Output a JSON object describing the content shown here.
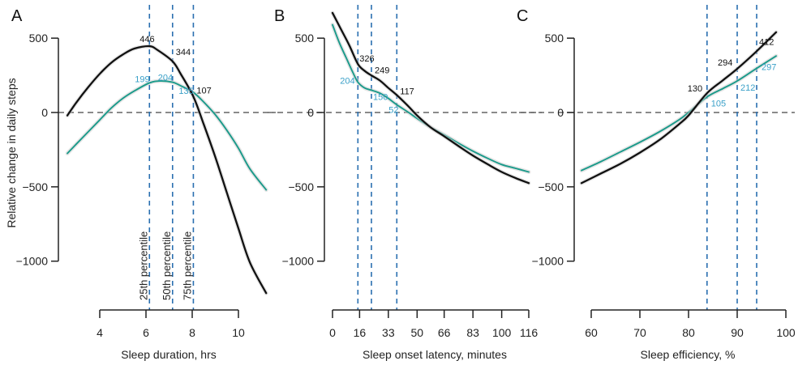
{
  "chart_data": [
    {
      "type": "line",
      "panel": "A",
      "title": "",
      "xlabel": "Sleep duration, hrs",
      "ylabel": "Relative change in daily steps",
      "xlim": [
        3.5,
        10.5
      ],
      "ylim": [
        -1000,
        500
      ],
      "x_ticks": [
        4,
        6,
        8,
        10
      ],
      "y_ticks": [
        500,
        0,
        -500,
        -1000
      ],
      "reference_line_y": 0,
      "percentile_lines": [
        {
          "x": 6.15,
          "label": "25th percentile"
        },
        {
          "x": 7.15,
          "label": "50th percentile"
        },
        {
          "x": 8.05,
          "label": "75th percentile"
        }
      ],
      "series": [
        {
          "name": "black",
          "color": "#111111",
          "x": [
            2.6,
            3.0,
            3.5,
            4.0,
            4.5,
            5.0,
            5.5,
            6.15,
            6.5,
            7.15,
            7.5,
            8.05,
            8.5,
            9.0,
            9.5,
            10.0,
            10.5,
            11.2
          ],
          "y": [
            -20,
            70,
            170,
            260,
            335,
            390,
            430,
            446,
            420,
            344,
            260,
            107,
            -80,
            -300,
            -540,
            -780,
            -1010,
            -1215
          ]
        },
        {
          "name": "teal",
          "color": "#1a9a8a",
          "x": [
            2.6,
            3.0,
            3.5,
            4.0,
            4.5,
            5.0,
            5.5,
            6.15,
            6.6,
            7.15,
            7.5,
            8.05,
            8.5,
            9.0,
            9.5,
            10.0,
            10.5,
            11.2
          ],
          "y": [
            -275,
            -210,
            -130,
            -50,
            30,
            95,
            145,
            199,
            212,
            204,
            180,
            135,
            70,
            -15,
            -120,
            -240,
            -380,
            -520
          ]
        }
      ],
      "annotations": [
        {
          "series": "black",
          "text": "446",
          "x": 6.15,
          "y": 446
        },
        {
          "series": "black",
          "text": "344",
          "x": 7.15,
          "y": 344
        },
        {
          "series": "black",
          "text": "107",
          "x": 8.05,
          "y": 107
        },
        {
          "series": "teal",
          "text": "199",
          "x": 6.15,
          "y": 199
        },
        {
          "series": "teal",
          "text": "204",
          "x": 7.15,
          "y": 204
        },
        {
          "series": "teal",
          "text": "135",
          "x": 8.05,
          "y": 135
        }
      ]
    },
    {
      "type": "line",
      "panel": "B",
      "title": "",
      "xlabel": "Sleep onset latency, minutes",
      "ylabel": "",
      "xlim": [
        0,
        116
      ],
      "ylim": [
        -1000,
        500
      ],
      "x_ticks": [
        0,
        16,
        33,
        50,
        66,
        83,
        100,
        116
      ],
      "y_ticks": [
        500,
        0,
        -500,
        -1000
      ],
      "reference_line_y": 0,
      "percentile_lines": [
        {
          "x": 15,
          "label": ""
        },
        {
          "x": 23,
          "label": ""
        },
        {
          "x": 38,
          "label": ""
        }
      ],
      "series": [
        {
          "name": "black",
          "color": "#111111",
          "x": [
            0,
            5,
            10,
            15,
            19,
            23,
            28,
            33,
            38,
            45,
            50,
            58,
            66,
            75,
            83,
            92,
            100,
            108,
            116
          ],
          "y": [
            670,
            560,
            450,
            326,
            280,
            249,
            215,
            165,
            117,
            40,
            -20,
            -100,
            -160,
            -230,
            -290,
            -350,
            -400,
            -440,
            -475
          ]
        },
        {
          "name": "teal",
          "color": "#1a9a8a",
          "x": [
            0,
            4,
            8,
            12,
            15,
            19,
            23,
            28,
            33,
            38,
            45,
            50,
            58,
            66,
            75,
            83,
            92,
            100,
            108,
            116
          ],
          "y": [
            590,
            470,
            370,
            270,
            204,
            165,
            150,
            130,
            95,
            52,
            0,
            -40,
            -100,
            -150,
            -210,
            -260,
            -310,
            -350,
            -375,
            -400
          ]
        }
      ],
      "annotations": [
        {
          "series": "black",
          "text": "326",
          "x": 15,
          "y": 326
        },
        {
          "series": "black",
          "text": "249",
          "x": 23,
          "y": 249
        },
        {
          "series": "black",
          "text": "117",
          "x": 38,
          "y": 117
        },
        {
          "series": "teal",
          "text": "204",
          "x": 15,
          "y": 204
        },
        {
          "series": "teal",
          "text": "150",
          "x": 23,
          "y": 150
        },
        {
          "series": "teal",
          "text": "52",
          "x": 38,
          "y": 52
        }
      ]
    },
    {
      "type": "line",
      "panel": "C",
      "title": "",
      "xlabel": "Sleep efficiency, %",
      "ylabel": "",
      "xlim": [
        60,
        100
      ],
      "ylim": [
        -1000,
        500
      ],
      "x_ticks": [
        60,
        70,
        80,
        90,
        100
      ],
      "y_ticks": [
        500,
        0,
        -500,
        -1000
      ],
      "reference_line_y": 0,
      "percentile_lines": [
        {
          "x": 83.8,
          "label": ""
        },
        {
          "x": 90,
          "label": ""
        },
        {
          "x": 94,
          "label": ""
        }
      ],
      "series": [
        {
          "name": "black",
          "color": "#111111",
          "x": [
            58,
            62,
            66,
            70,
            74,
            78,
            80,
            83.8,
            87,
            90,
            94,
            98
          ],
          "y": [
            -475,
            -410,
            -345,
            -270,
            -185,
            -80,
            -20,
            130,
            215,
            294,
            412,
            540
          ]
        },
        {
          "name": "teal",
          "color": "#1a9a8a",
          "x": [
            58,
            62,
            66,
            70,
            74,
            78,
            80,
            83.8,
            87,
            90,
            94,
            98
          ],
          "y": [
            -390,
            -330,
            -265,
            -200,
            -130,
            -50,
            0,
            105,
            160,
            212,
            297,
            380
          ]
        }
      ],
      "annotations": [
        {
          "series": "black",
          "text": "130",
          "x": 83.8,
          "y": 130
        },
        {
          "series": "black",
          "text": "294",
          "x": 90,
          "y": 294
        },
        {
          "series": "black",
          "text": "412",
          "x": 94,
          "y": 412
        },
        {
          "series": "teal",
          "text": "105",
          "x": 83.8,
          "y": 105
        },
        {
          "series": "teal",
          "text": "212",
          "x": 90,
          "y": 212
        },
        {
          "series": "teal",
          "text": "297",
          "x": 94,
          "y": 297
        }
      ]
    }
  ],
  "panels": {
    "A": {
      "letter": "A"
    },
    "B": {
      "letter": "B"
    },
    "C": {
      "letter": "C"
    }
  },
  "colors": {
    "black_series": "#111111",
    "teal_series": "#1a9a8a",
    "teal_label": "#3aa0c8",
    "percentile_line": "#2a6fb0",
    "zero_line": "#444444"
  }
}
